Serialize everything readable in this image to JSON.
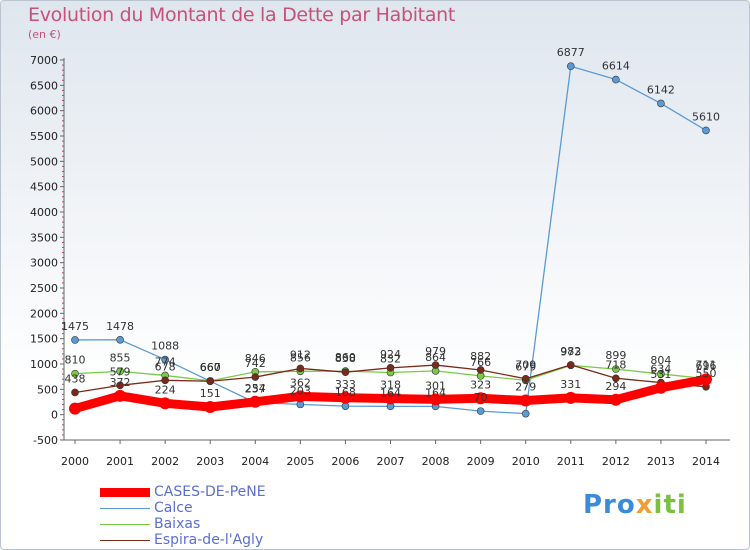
{
  "header": {
    "title": "Evolution du Montant de la Dette par Habitant",
    "subtitle": "(en €)"
  },
  "logo": {
    "text": "Proxiti",
    "parts": [
      "Pro",
      "x",
      "iti"
    ]
  },
  "chart_data": {
    "type": "line",
    "title": "Evolution du Montant de la Dette par Habitant",
    "ylabel": "(en €)",
    "x": [
      2000,
      2001,
      2002,
      2003,
      2004,
      2005,
      2006,
      2007,
      2008,
      2009,
      2010,
      2011,
      2012,
      2013,
      2014
    ],
    "yticks": [
      -500,
      0,
      500,
      1000,
      1500,
      2000,
      2500,
      3000,
      3500,
      4000,
      4500,
      5000,
      5500,
      6000,
      6500,
      7000
    ],
    "ylim": [
      -500,
      7000
    ],
    "grid": false,
    "legend_position": "bottom-left",
    "series": [
      {
        "name": "CASES-DE-PeNE",
        "color": "#ff0000",
        "values": [
          120,
          372,
          224,
          151,
          254,
          362,
          333,
          318,
          301,
          323,
          279,
          331,
          294,
          531,
          696
        ],
        "labels": [
          "",
          "372",
          "224",
          "151",
          "254",
          "362",
          "333",
          "318",
          "301",
          "323",
          "279",
          "331",
          "294",
          "531",
          "696"
        ]
      },
      {
        "name": "Calce",
        "color": "#5a9bd5",
        "values": [
          1475,
          1478,
          1088,
          660,
          237,
          203,
          168,
          164,
          164,
          70,
          20,
          6877,
          6614,
          6142,
          5610
        ],
        "labels": [
          "1475",
          "1478",
          "1088",
          "660",
          "237",
          "203",
          "168",
          "164",
          "164",
          "70",
          "",
          "6877",
          "6614",
          "6142",
          "5610"
        ]
      },
      {
        "name": "Baixas",
        "color": "#77cc44",
        "values": [
          810,
          855,
          774,
          667,
          846,
          856,
          860,
          832,
          864,
          766,
          679,
          973,
          899,
          804,
          711
        ],
        "labels": [
          "810",
          "855",
          "774",
          "667",
          "846",
          "856",
          "860",
          "832",
          "864",
          "766",
          "679",
          "973",
          "899",
          "804",
          "711"
        ]
      },
      {
        "name": "Espira-de-l'Agly",
        "color": "#7a2a1a",
        "values": [
          438,
          579,
          678,
          660,
          742,
          912,
          838,
          924,
          979,
          882,
          709,
          982,
          718,
          634,
          550
        ],
        "labels": [
          "438",
          "579",
          "678",
          "660",
          "742",
          "912",
          "838",
          "924",
          "979",
          "882",
          "709",
          "982",
          "718",
          "634",
          "550"
        ]
      }
    ]
  }
}
